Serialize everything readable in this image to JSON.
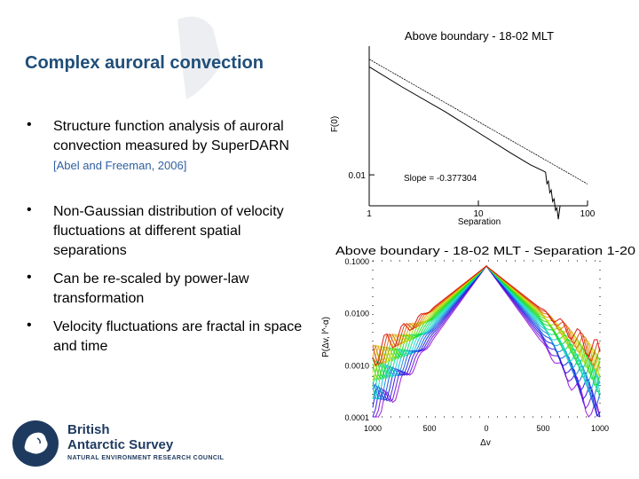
{
  "slide": {
    "title": "Complex auroral convection",
    "bullets": [
      {
        "text": "Structure function analysis of auroral convection measured by SuperDARN",
        "citation": "[Abel and Freeman, 2006]"
      },
      {
        "text": "Non-Gaussian distribution of velocity fluctuations at different spatial separations"
      },
      {
        "text": "Can be re-scaled by power-law transformation"
      },
      {
        "text": "Velocity fluctuations are fractal in space and time"
      }
    ],
    "bullet_glyph": "•"
  },
  "logo": {
    "name_line1": "British",
    "name_line2": "Antarctic Survey",
    "subtitle": "NATURAL ENVIRONMENT RESEARCH COUNCIL",
    "icon": "globe-antarctica-icon",
    "color": "#1f3a5f"
  },
  "colors": {
    "title": "#1f4e79",
    "citation": "#3060a0"
  },
  "chart_data": [
    {
      "type": "line",
      "title": "Above boundary - 18-02 MLT",
      "xlabel": "Separation",
      "ylabel": "F(0)",
      "xscale": "log",
      "yscale": "log",
      "xlim": [
        1,
        100
      ],
      "x_ticks": [
        "1",
        "10",
        "100"
      ],
      "y_ticks": [
        "0.01"
      ],
      "annotation": "Slope = -0.377304",
      "series": [
        {
          "values_x": [
            1,
            2,
            5,
            10,
            20,
            30,
            40
          ],
          "values_y": [
            0.045,
            0.034,
            0.024,
            0.018,
            0.0135,
            0.0115,
            0.0105
          ]
        },
        {
          "values_x": [
            1,
            100
          ],
          "values_y": [
            0.05,
            0.0088
          ]
        }
      ]
    },
    {
      "type": "line",
      "title": "Above boundary - 18-02 MLT - Separation 1-20",
      "xlabel": "Δv",
      "ylabel": "P(Δv, l^-α)",
      "yscale": "log",
      "x_ticks": [
        "1000",
        "500",
        "0",
        "500",
        "1000"
      ],
      "y_ticks": [
        "0.1000",
        "0.0100",
        "0.0010",
        "0.0001"
      ],
      "series_count": 20
    }
  ]
}
